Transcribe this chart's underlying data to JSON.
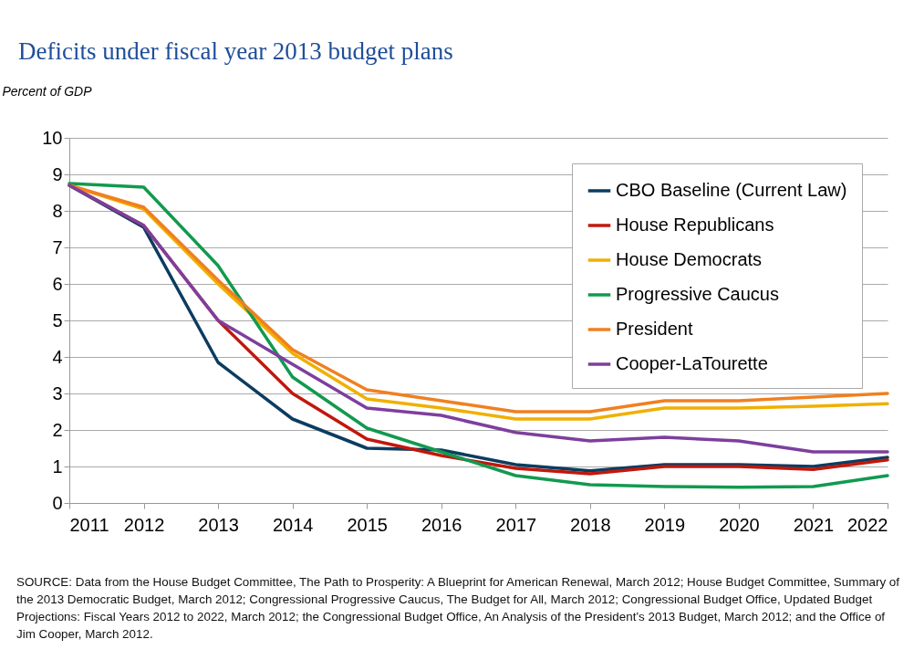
{
  "chart_data": {
    "type": "line",
    "title": "Deficits under fiscal year 2013 budget plans",
    "ylabel": "Percent of GDP",
    "x": [
      2011,
      2012,
      2013,
      2014,
      2015,
      2016,
      2017,
      2018,
      2019,
      2020,
      2021,
      2022
    ],
    "xlim": [
      2011,
      2022
    ],
    "xticks": [
      2011,
      2012,
      2013,
      2014,
      2015,
      2016,
      2017,
      2018,
      2019,
      2020,
      2021,
      2022
    ],
    "ylim": [
      0,
      10
    ],
    "yticks": [
      0,
      1,
      2,
      3,
      4,
      5,
      6,
      7,
      8,
      9,
      10
    ],
    "grid": "y",
    "legend": "top right",
    "series": [
      {
        "name": "CBO Baseline (Current Law)",
        "color": "#0c3c60",
        "values": [
          8.7,
          7.55,
          3.85,
          2.3,
          1.5,
          1.45,
          1.05,
          0.88,
          1.05,
          1.05,
          1.0,
          1.25
        ]
      },
      {
        "name": "House Republicans",
        "color": "#c0180c",
        "values": [
          8.7,
          7.6,
          5.0,
          3.0,
          1.75,
          1.3,
          0.95,
          0.8,
          1.0,
          1.0,
          0.92,
          1.18
        ]
      },
      {
        "name": "House Democrats",
        "color": "#f0b000",
        "values": [
          8.7,
          8.05,
          6.0,
          4.1,
          2.85,
          2.6,
          2.3,
          2.3,
          2.6,
          2.6,
          2.65,
          2.72
        ]
      },
      {
        "name": "Progressive Caucus",
        "color": "#119a4f",
        "values": [
          8.75,
          8.65,
          6.5,
          3.45,
          2.05,
          1.4,
          0.75,
          0.5,
          0.45,
          0.43,
          0.45,
          0.75
        ]
      },
      {
        "name": "President",
        "color": "#f08020",
        "values": [
          8.7,
          8.1,
          6.1,
          4.2,
          3.1,
          2.8,
          2.5,
          2.5,
          2.8,
          2.8,
          2.9,
          3.0
        ]
      },
      {
        "name": "Cooper-LaTourette",
        "color": "#7d3f9e",
        "values": [
          8.7,
          7.6,
          5.0,
          3.8,
          2.6,
          2.4,
          1.93,
          1.7,
          1.8,
          1.7,
          1.4,
          1.4
        ]
      }
    ],
    "annotations": [
      "SOURCE: Data from the House Budget Committee, The Path to Prosperity: A Blueprint for American Renewal, March 2012; House Budget Committee, Summary of the 2013 Democratic Budget, March 2012; Congressional Progressive Caucus, The Budget for All, March 2012; Congressional Budget Office, Updated Budget Projections: Fiscal Years 2012 to 2022, March 2012; the Congressional Budget Office, An Analysis of the President’s 2013 Budget, March 2012; and the Office of Jim Cooper, March 2012."
    ]
  }
}
